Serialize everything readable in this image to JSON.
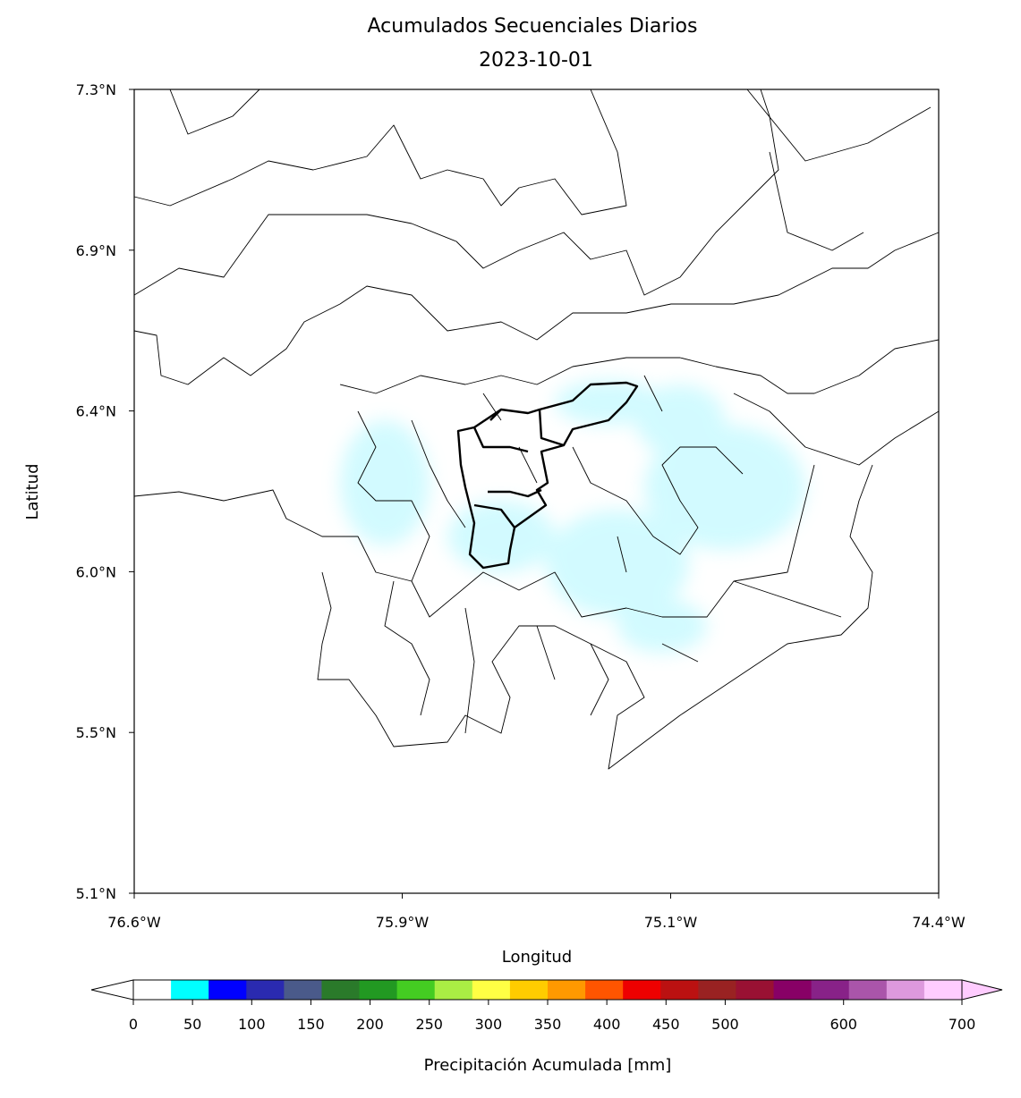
{
  "map": {
    "title": "Acumulados Secuenciales Diarios",
    "subtitle": "2023-10-01",
    "x_label": "Longitud",
    "y_label": "Latitud",
    "xlim": [
      -76.6,
      -74.4
    ],
    "ylim": [
      5.1,
      7.3
    ],
    "xticks": [
      {
        "value": -76.6,
        "label": "76.6°W"
      },
      {
        "value": -75.867,
        "label": "75.9°W"
      },
      {
        "value": -75.133,
        "label": "75.1°W"
      },
      {
        "value": -74.4,
        "label": "74.4°W"
      }
    ],
    "yticks": [
      {
        "value": 5.1,
        "label": "5.1°N"
      },
      {
        "value": 5.54,
        "label": "5.5°N"
      },
      {
        "value": 5.98,
        "label": "6.0°N"
      },
      {
        "value": 6.42,
        "label": "6.4°N"
      },
      {
        "value": 6.86,
        "label": "6.9°N"
      },
      {
        "value": 7.3,
        "label": "7.3°N"
      }
    ],
    "colorbar": {
      "label": "Precipitación Acumulada [mm]",
      "lim": [
        0,
        700
      ],
      "ticks": [
        0,
        50,
        100,
        150,
        200,
        250,
        300,
        350,
        400,
        450,
        500,
        600,
        700
      ],
      "colors": [
        "#ffffff",
        "#00ffff",
        "#0000ff",
        "#2a2ab0",
        "#4a5a8a",
        "#2a7a2a",
        "#229922",
        "#44cc22",
        "#aaee44",
        "#ffff44",
        "#ffcc00",
        "#ff9900",
        "#ff5500",
        "#ee0000",
        "#bb1111",
        "#992222",
        "#991133",
        "#880066",
        "#882288",
        "#aa55aa",
        "#dd99dd",
        "#ffccff"
      ]
    }
  }
}
